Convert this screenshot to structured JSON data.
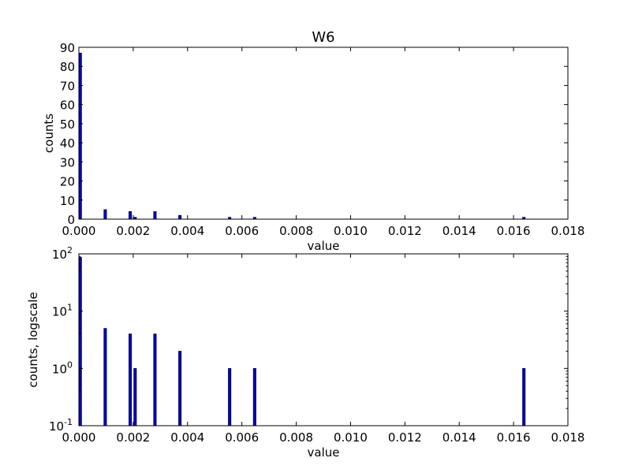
{
  "chart_data": [
    {
      "type": "bar",
      "title": "W6",
      "xlabel": "value",
      "ylabel": "counts",
      "xlim": [
        0,
        0.018
      ],
      "ylim": [
        0,
        90
      ],
      "yscale": "linear",
      "grid": false,
      "xticks": [
        "0.000",
        "0.002",
        "0.004",
        "0.006",
        "0.008",
        "0.010",
        "0.012",
        "0.014",
        "0.016",
        "0.018"
      ],
      "yticks": [
        "0",
        "10",
        "20",
        "30",
        "40",
        "50",
        "60",
        "70",
        "80",
        "90"
      ],
      "bar_width": 0.0001,
      "x": [
        0.0,
        0.00092,
        0.00184,
        0.00202,
        0.00275,
        0.00367,
        0.0055,
        0.00642,
        0.01633
      ],
      "values": [
        87,
        5,
        4,
        1,
        4,
        2,
        1,
        1,
        1
      ],
      "bar_color": "#0000cc"
    },
    {
      "type": "bar",
      "title": "",
      "xlabel": "value",
      "ylabel": "counts, logscale",
      "xlim": [
        0,
        0.018
      ],
      "ylim": [
        0.1,
        100
      ],
      "yscale": "log",
      "grid": false,
      "xticks": [
        "0.000",
        "0.002",
        "0.004",
        "0.006",
        "0.008",
        "0.010",
        "0.012",
        "0.014",
        "0.016",
        "0.018"
      ],
      "yticks": [
        {
          "base": "10",
          "exp": "-1",
          "value": 0.1
        },
        {
          "base": "10",
          "exp": "0",
          "value": 1
        },
        {
          "base": "10",
          "exp": "1",
          "value": 10
        },
        {
          "base": "10",
          "exp": "2",
          "value": 100
        }
      ],
      "bar_width": 0.0001,
      "x": [
        0.0,
        0.00092,
        0.00184,
        0.00202,
        0.00275,
        0.00367,
        0.0055,
        0.00642,
        0.01633
      ],
      "values": [
        87,
        5,
        4,
        1,
        4,
        2,
        1,
        1,
        1
      ],
      "bar_color": "#0000cc"
    }
  ]
}
